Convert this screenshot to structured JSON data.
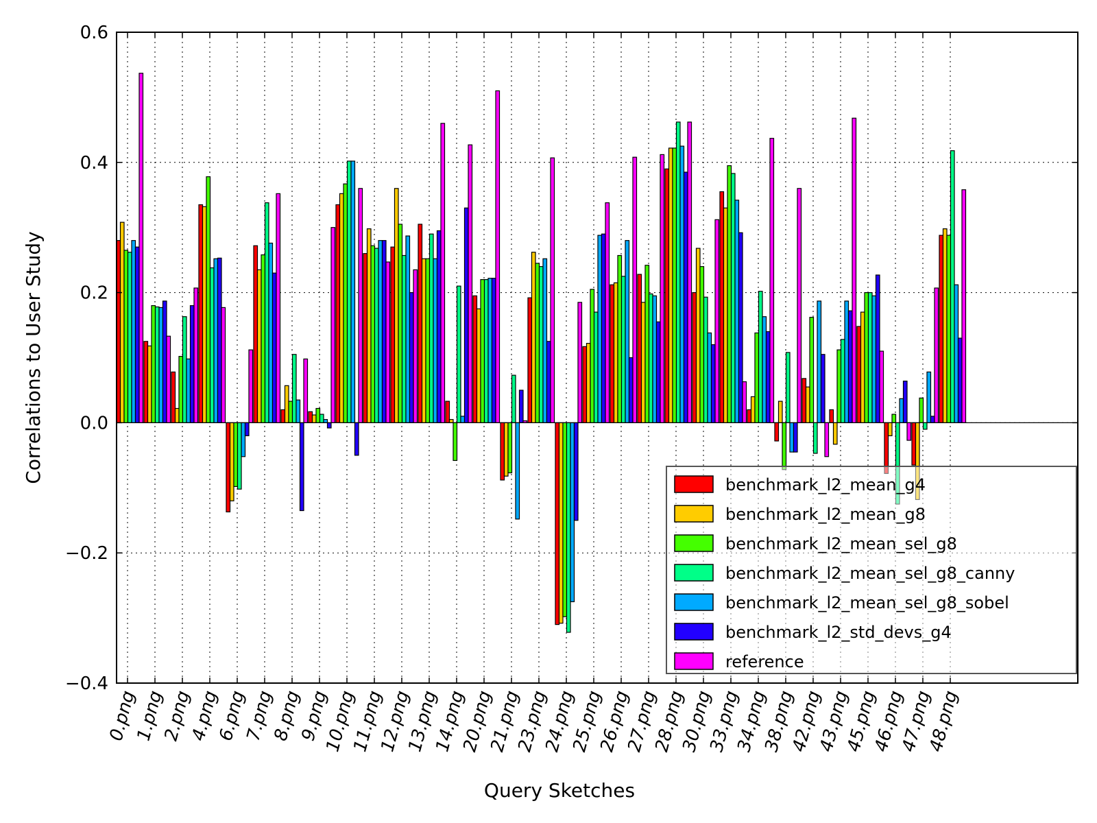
{
  "chart_data": {
    "type": "bar",
    "title": "",
    "xlabel": "Query Sketches",
    "ylabel": "Correlations to User Study",
    "ylim": [
      -0.4,
      0.6
    ],
    "yticks": [
      "−0.4",
      "−0.2",
      "0.0",
      "0.2",
      "0.4",
      "0.6"
    ],
    "grid": true,
    "legend_position": "lower-right",
    "categories": [
      "0.png",
      "1.png",
      "2.png",
      "4.png",
      "6.png",
      "7.png",
      "8.png",
      "9.png",
      "10.png",
      "11.png",
      "12.png",
      "13.png",
      "14.png",
      "20.png",
      "21.png",
      "23.png",
      "24.png",
      "25.png",
      "26.png",
      "27.png",
      "28.png",
      "30.png",
      "33.png",
      "34.png",
      "38.png",
      "42.png",
      "43.png",
      "45.png",
      "46.png",
      "47.png",
      "48.png"
    ],
    "series": [
      {
        "name": "benchmark_l2_mean_g4",
        "color": "#ff0000",
        "values": [
          0.28,
          0.125,
          0.078,
          0.335,
          -0.137,
          0.272,
          0.02,
          0.017,
          0.335,
          0.26,
          0.27,
          0.305,
          0.033,
          0.195,
          -0.088,
          0.192,
          -0.31,
          0.117,
          0.212,
          0.228,
          0.39,
          0.2,
          0.355,
          0.02,
          -0.028,
          0.068,
          0.02,
          0.148,
          -0.078,
          -0.065,
          0.288
        ]
      },
      {
        "name": "benchmark_l2_mean_g8",
        "color": "#ffcc00",
        "values": [
          0.308,
          0.118,
          0.022,
          0.332,
          -0.12,
          0.235,
          0.057,
          0.012,
          0.352,
          0.298,
          0.36,
          0.252,
          0.005,
          0.175,
          -0.082,
          0.262,
          -0.308,
          0.122,
          0.215,
          0.185,
          0.422,
          0.268,
          0.33,
          0.04,
          0.033,
          0.055,
          -0.033,
          0.17,
          -0.02,
          -0.118,
          0.298
        ]
      },
      {
        "name": "benchmark_l2_mean_sel_g8",
        "color": "#44ff00",
        "values": [
          0.265,
          0.18,
          0.102,
          0.378,
          -0.098,
          0.258,
          0.033,
          0.022,
          0.367,
          0.272,
          0.305,
          0.252,
          -0.058,
          0.22,
          -0.077,
          0.245,
          -0.298,
          0.205,
          0.257,
          0.242,
          0.422,
          0.24,
          0.395,
          0.138,
          -0.072,
          0.162,
          0.112,
          0.2,
          0.013,
          0.038,
          0.288
        ]
      },
      {
        "name": "benchmark_l2_mean_sel_g8_canny",
        "color": "#00ff88",
        "values": [
          0.262,
          0.178,
          0.163,
          0.238,
          -0.102,
          0.338,
          0.105,
          0.013,
          0.402,
          0.268,
          0.257,
          0.29,
          0.21,
          0.22,
          0.073,
          0.24,
          -0.322,
          0.17,
          0.225,
          0.198,
          0.462,
          0.193,
          0.383,
          0.202,
          0.108,
          -0.047,
          0.128,
          0.2,
          -0.125,
          -0.01,
          0.418
        ]
      },
      {
        "name": "benchmark_l2_mean_sel_g8_sobel",
        "color": "#00aaff",
        "values": [
          0.28,
          0.177,
          0.098,
          0.252,
          -0.052,
          0.276,
          0.035,
          0.005,
          0.402,
          0.28,
          0.287,
          0.252,
          0.01,
          0.222,
          -0.148,
          0.252,
          -0.275,
          0.288,
          0.28,
          0.195,
          0.425,
          0.138,
          0.342,
          0.163,
          -0.045,
          0.187,
          0.187,
          0.195,
          0.037,
          0.078,
          0.212
        ]
      },
      {
        "name": "benchmark_l2_std_devs_g4",
        "color": "#2200ff",
        "values": [
          0.27,
          0.187,
          0.18,
          0.253,
          -0.02,
          0.23,
          -0.135,
          -0.008,
          -0.05,
          0.28,
          0.2,
          0.295,
          0.33,
          0.222,
          0.05,
          0.125,
          -0.15,
          0.29,
          0.1,
          0.155,
          0.385,
          0.12,
          0.292,
          0.14,
          -0.045,
          0.105,
          0.172,
          0.227,
          0.064,
          0.01,
          0.13
        ]
      },
      {
        "name": "reference",
        "color": "#ff00ff",
        "values": [
          0.537,
          0.133,
          0.207,
          0.177,
          0.112,
          0.352,
          0.098,
          0.3,
          0.36,
          0.247,
          0.235,
          0.46,
          0.427,
          0.51,
          0.003,
          0.407,
          0.185,
          0.338,
          0.408,
          0.412,
          0.462,
          0.312,
          0.063,
          0.437,
          0.36,
          -0.052,
          0.468,
          0.11,
          -0.027,
          0.207,
          0.358
        ]
      }
    ]
  }
}
